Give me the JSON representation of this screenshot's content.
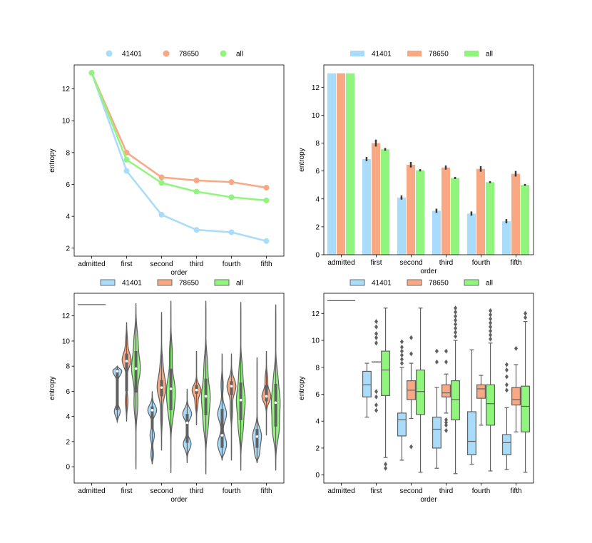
{
  "chart_data": [
    {
      "type": "line",
      "xlabel": "order",
      "ylabel": "entropy",
      "categories": [
        "admitted",
        "first",
        "second",
        "third",
        "fourth",
        "fifth"
      ],
      "yticks": [
        2,
        4,
        6,
        8,
        10,
        12
      ],
      "ylim": [
        1.5,
        13.5
      ],
      "legend": "top-center",
      "series": [
        {
          "name": "41401",
          "color": "#a8dcfa",
          "values": [
            13.0,
            6.85,
            4.1,
            3.15,
            3.0,
            2.45
          ]
        },
        {
          "name": "78650",
          "color": "#f9a884",
          "values": [
            13.0,
            8.0,
            6.45,
            6.25,
            6.15,
            5.8
          ]
        },
        {
          "name": "all",
          "color": "#90f57c",
          "values": [
            13.0,
            7.55,
            6.1,
            5.55,
            5.2,
            5.0
          ]
        }
      ]
    },
    {
      "type": "bar",
      "xlabel": "order",
      "ylabel": "entropy",
      "categories": [
        "admitted",
        "first",
        "second",
        "third",
        "fourth",
        "fifth"
      ],
      "yticks": [
        0,
        2,
        4,
        6,
        8,
        10,
        12
      ],
      "ylim": [
        0,
        13.6
      ],
      "legend": "top-center",
      "series": [
        {
          "name": "41401",
          "color": "#a8dcfa",
          "values": [
            13.0,
            6.85,
            4.1,
            3.15,
            2.95,
            2.4
          ],
          "err": [
            0,
            0.15,
            0.15,
            0.15,
            0.15,
            0.15
          ]
        },
        {
          "name": "78650",
          "color": "#f9a884",
          "values": [
            13.0,
            8.0,
            6.45,
            6.25,
            6.15,
            5.8
          ],
          "err": [
            0,
            0.25,
            0.2,
            0.15,
            0.2,
            0.2
          ]
        },
        {
          "name": "all",
          "color": "#90f57c",
          "values": [
            13.0,
            7.55,
            6.05,
            5.5,
            5.2,
            5.0
          ],
          "err": [
            0,
            0.1,
            0.08,
            0.08,
            0.07,
            0.07
          ]
        }
      ]
    },
    {
      "type": "violin",
      "xlabel": "order",
      "ylabel": "entropy",
      "categories": [
        "admitted",
        "first",
        "second",
        "third",
        "fourth",
        "fifth"
      ],
      "yticks": [
        0,
        2,
        4,
        6,
        8,
        10,
        12
      ],
      "ylim": [
        -1.3,
        13.8
      ],
      "legend": "top-center",
      "admitted_value": 12.9,
      "series": [
        {
          "name": "41401",
          "color": "#a8dcfa",
          "groups": [
            null,
            {
              "min": 3.5,
              "max": 8.0,
              "q1": 4.5,
              "med": 7.6,
              "q3": 7.8,
              "modes": [
                [
                  7.6,
                  0.9
                ],
                [
                  4.4,
                  0.6
                ]
              ]
            },
            {
              "min": 0.2,
              "max": 6.0,
              "q1": 3.0,
              "med": 4.5,
              "q3": 4.8,
              "modes": [
                [
                  4.5,
                  1.0
                ],
                [
                  2.5,
                  0.5
                ],
                [
                  1.0,
                  0.3
                ]
              ]
            },
            {
              "min": 0.3,
              "max": 6.2,
              "q1": 1.9,
              "med": 3.5,
              "q3": 4.2,
              "modes": [
                [
                  4.2,
                  0.8
                ],
                [
                  1.8,
                  0.7
                ]
              ]
            },
            {
              "min": 0.5,
              "max": 9.0,
              "q1": 1.5,
              "med": 2.5,
              "q3": 4.6,
              "modes": [
                [
                  4.2,
                  0.8
                ],
                [
                  1.8,
                  0.8
                ],
                [
                  6.5,
                  0.2
                ]
              ]
            },
            {
              "min": 0.3,
              "max": 8.7,
              "q1": 1.5,
              "med": 2.4,
              "q3": 3.0,
              "modes": [
                [
                  2.5,
                  0.9
                ],
                [
                  1.2,
                  0.5
                ]
              ]
            }
          ]
        },
        {
          "name": "78650",
          "color": "#f9a884",
          "groups": [
            null,
            {
              "min": 3.6,
              "max": 11.5,
              "q1": 6.0,
              "med": 8.4,
              "q3": 9.0,
              "modes": [
                [
                  8.5,
                  1.0
                ],
                [
                  5.2,
                  0.3
                ],
                [
                  10.0,
                  0.2
                ]
              ]
            },
            {
              "min": 1.3,
              "max": 12.3,
              "q1": 5.6,
              "med": 6.3,
              "q3": 6.9,
              "modes": [
                [
                  6.3,
                  1.0
                ],
                [
                  8.0,
                  0.3
                ],
                [
                  4.0,
                  0.2
                ]
              ]
            },
            {
              "min": 3.3,
              "max": 9.2,
              "q1": 5.8,
              "med": 6.1,
              "q3": 6.5,
              "modes": [
                [
                  6.1,
                  1.0
                ],
                [
                  5.0,
                  0.3
                ]
              ]
            },
            {
              "min": 0.5,
              "max": 9.0,
              "q1": 5.7,
              "med": 6.4,
              "q3": 6.8,
              "modes": [
                [
                  6.4,
                  1.0
                ],
                [
                  4.5,
                  0.3
                ]
              ]
            },
            {
              "min": 2.5,
              "max": 9.2,
              "q1": 5.2,
              "med": 5.6,
              "q3": 6.5,
              "modes": [
                [
                  5.6,
                  1.0
                ],
                [
                  7.0,
                  0.3
                ]
              ]
            }
          ]
        },
        {
          "name": "all",
          "color": "#90f57c",
          "groups": [
            null,
            {
              "min": -0.2,
              "max": 13.0,
              "q1": 5.9,
              "med": 7.8,
              "q3": 9.2,
              "modes": [
                [
                  7.8,
                  0.9
                ],
                [
                  10.0,
                  0.4
                ],
                [
                  5.0,
                  0.4
                ]
              ]
            },
            {
              "min": -0.5,
              "max": 13.2,
              "q1": 4.5,
              "med": 6.2,
              "q3": 7.8,
              "modes": [
                [
                  6.2,
                  0.8
                ],
                [
                  4.5,
                  0.5
                ],
                [
                  9.0,
                  0.3
                ]
              ]
            },
            {
              "min": -0.6,
              "max": 13.2,
              "q1": 4.1,
              "med": 5.6,
              "q3": 7.0,
              "modes": [
                [
                  5.6,
                  0.7
                ],
                [
                  3.5,
                  0.4
                ],
                [
                  8.0,
                  0.3
                ]
              ]
            },
            {
              "min": -0.3,
              "max": 13.1,
              "q1": 3.7,
              "med": 5.3,
              "q3": 6.7,
              "modes": [
                [
                  5.3,
                  0.7
                ],
                [
                  3.2,
                  0.4
                ],
                [
                  7.5,
                  0.3
                ]
              ]
            },
            {
              "min": -0.3,
              "max": 12.9,
              "q1": 3.2,
              "med": 5.1,
              "q3": 6.6,
              "modes": [
                [
                  5.1,
                  0.6
                ],
                [
                  3.0,
                  0.5
                ],
                [
                  7.0,
                  0.3
                ]
              ]
            }
          ]
        }
      ]
    },
    {
      "type": "box",
      "xlabel": "order",
      "ylabel": "entropy",
      "categories": [
        "admitted",
        "first",
        "second",
        "third",
        "fourth",
        "fifth"
      ],
      "yticks": [
        0,
        2,
        4,
        6,
        8,
        10,
        12
      ],
      "ylim": [
        -0.6,
        13.5
      ],
      "legend": "top-center",
      "admitted_value": 12.95,
      "series": [
        {
          "name": "41401",
          "color": "#a8dcfa",
          "groups": [
            null,
            {
              "wlo": 4.3,
              "q1": 5.8,
              "med": 6.7,
              "q3": 7.7,
              "whi": 8.3,
              "fliers": []
            },
            {
              "wlo": 1.1,
              "q1": 2.9,
              "med": 4.1,
              "q3": 4.6,
              "whi": 8.0,
              "fliers": [
                8.3,
                8.6,
                8.9,
                9.2,
                9.5,
                9.9
              ]
            },
            {
              "wlo": 0.5,
              "q1": 2.0,
              "med": 3.4,
              "q3": 4.3,
              "whi": 6.5,
              "fliers": [
                8.4,
                9.2
              ]
            },
            {
              "wlo": 0.8,
              "q1": 1.5,
              "med": 2.5,
              "q3": 4.7,
              "whi": 9.3,
              "fliers": []
            },
            {
              "wlo": 0.4,
              "q1": 1.5,
              "med": 2.4,
              "q3": 3.0,
              "whi": 5.0,
              "fliers": [
                6.3,
                6.7,
                7.3,
                7.8,
                8.2
              ]
            }
          ]
        },
        {
          "name": "78650",
          "color": "#f9a884",
          "groups": [
            null,
            {
              "wlo": 8.4,
              "q1": 8.4,
              "med": 8.4,
              "q3": 8.4,
              "whi": 8.4,
              "fliers": [
                4.8,
                5.2,
                5.8,
                6.2,
                9.8,
                10.2,
                10.5,
                11.0,
                11.4
              ]
            },
            {
              "wlo": 4.2,
              "q1": 5.6,
              "med": 6.3,
              "q3": 7.0,
              "whi": 8.3,
              "fliers": [
                2.1,
                9.0,
                10.2
              ]
            },
            {
              "wlo": 4.6,
              "q1": 5.8,
              "med": 6.1,
              "q3": 6.7,
              "whi": 7.5,
              "fliers": [
                3.3,
                3.7,
                3.9,
                4.1,
                8.4,
                9.2
              ]
            },
            {
              "wlo": 3.7,
              "q1": 5.7,
              "med": 6.4,
              "q3": 6.7,
              "whi": 7.4,
              "fliers": []
            },
            {
              "wlo": 3.2,
              "q1": 5.2,
              "med": 5.6,
              "q3": 6.5,
              "whi": 8.2,
              "fliers": [
                9.4
              ]
            }
          ]
        },
        {
          "name": "all",
          "color": "#90f57c",
          "groups": [
            null,
            {
              "wlo": 1.3,
              "q1": 5.9,
              "med": 7.8,
              "q3": 9.2,
              "whi": 12.4,
              "fliers": [
                0.5,
                0.8
              ]
            },
            {
              "wlo": 0.2,
              "q1": 4.5,
              "med": 6.2,
              "q3": 7.8,
              "whi": 12.4,
              "fliers": []
            },
            {
              "wlo": 0.1,
              "q1": 4.1,
              "med": 5.6,
              "q3": 7.0,
              "whi": 10.0,
              "fliers": [
                10.3,
                10.6,
                10.9,
                11.2,
                11.5,
                11.8,
                12.1,
                12.4
              ]
            },
            {
              "wlo": 0.3,
              "q1": 3.7,
              "med": 5.3,
              "q3": 6.7,
              "whi": 9.8,
              "fliers": [
                10.1,
                10.4,
                10.7,
                11.0,
                11.3,
                11.6,
                11.9,
                12.2
              ]
            },
            {
              "wlo": 0.2,
              "q1": 3.2,
              "med": 5.1,
              "q3": 6.6,
              "whi": 11.4,
              "fliers": [
                11.7,
                12.0
              ]
            }
          ]
        }
      ]
    }
  ]
}
